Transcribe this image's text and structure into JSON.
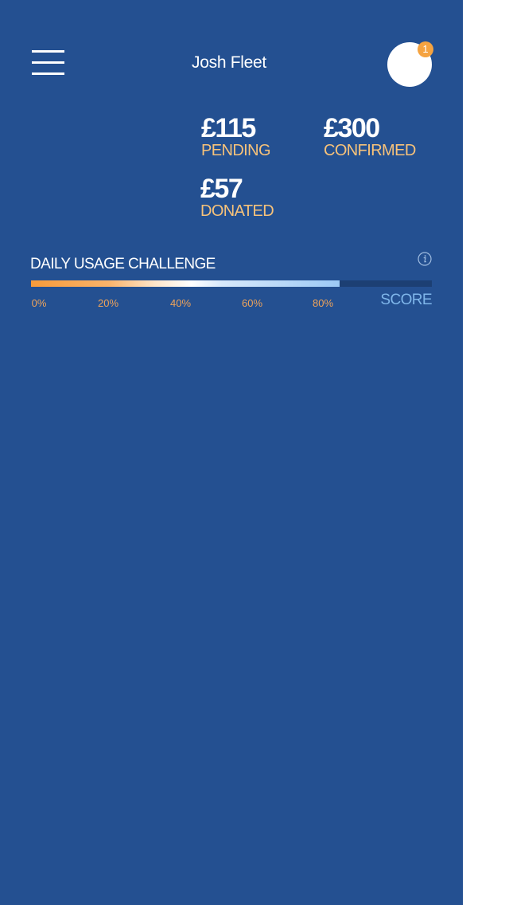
{
  "header": {
    "user_name": "Josh Fleet",
    "notification_count": "1",
    "menu_icon": "hamburger-menu-icon"
  },
  "stats": {
    "pending": {
      "amount": "£115",
      "label": "PENDING"
    },
    "confirmed": {
      "amount": "£300",
      "label": "CONFIRMED"
    },
    "donated": {
      "amount": "£57",
      "label": "DONATED"
    }
  },
  "challenge": {
    "title": "DAILY USAGE CHALLENGE",
    "info_icon": "info-icon",
    "progress_percent": 77,
    "ticks": [
      "0%",
      "20%",
      "40%",
      "60%",
      "80%"
    ],
    "score_label": "SCORE"
  },
  "colors": {
    "background": "#245091",
    "accent_orange": "#f5a340",
    "label_gold": "#f7c27a",
    "score_blue": "#7fb6ea"
  }
}
